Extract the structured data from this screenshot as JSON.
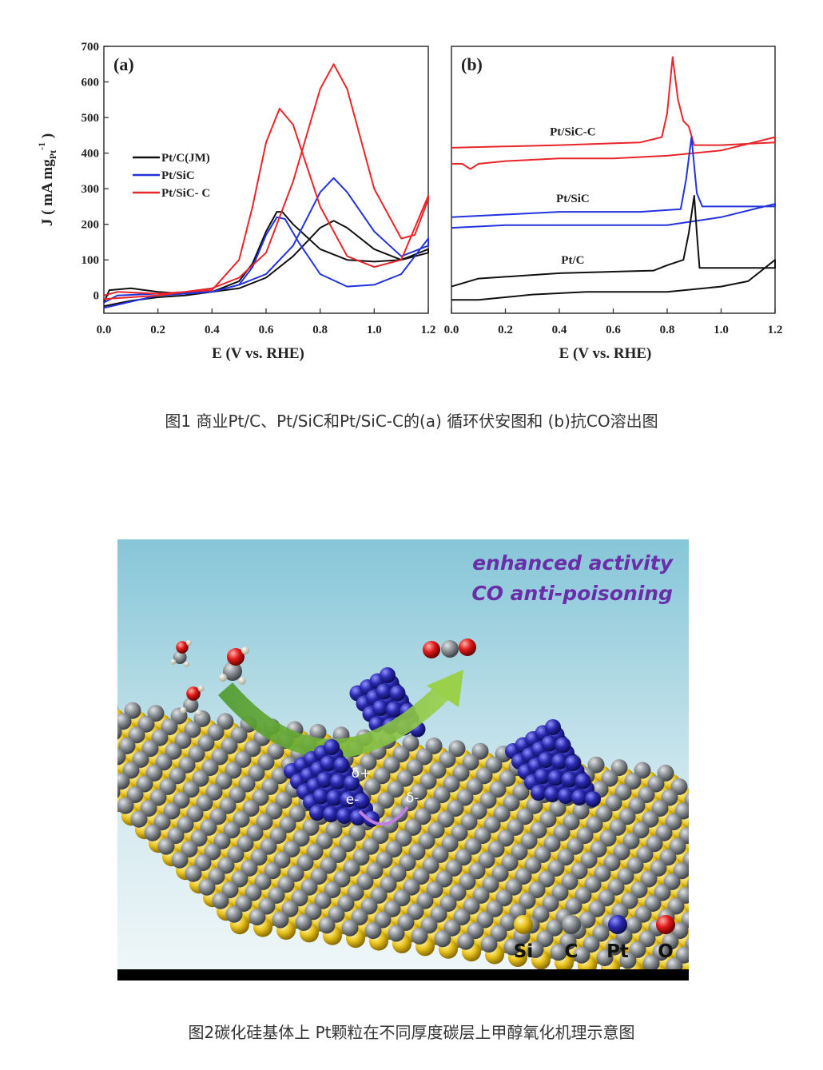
{
  "chart_data": [
    {
      "type": "line",
      "panel_label": "(a)",
      "xlabel": "E (V vs. RHE)",
      "ylabel": {
        "main": "J ( mA mg",
        "sub": "Pt",
        "sup": "-1",
        "end": " )"
      },
      "xlim": [
        0,
        1.2
      ],
      "ylim": [
        -50,
        700
      ],
      "xticks": [
        {
          "value": 0,
          "label": "0.0"
        },
        0.2,
        0.4,
        0.6,
        0.8,
        {
          "value": 1,
          "label": "1.0"
        },
        1.2
      ],
      "yticks": [
        0,
        100,
        200,
        300,
        400,
        500,
        600,
        700
      ],
      "legend": "left",
      "series": [
        {
          "name": "Pt/C(JM)",
          "color": "#111111",
          "x": [
            0,
            0.02,
            0.1,
            0.2,
            0.3,
            0.4,
            0.5,
            0.55,
            0.6,
            0.64,
            0.66,
            0.7,
            0.8,
            0.9,
            1.0,
            1.1,
            1.2,
            1.2,
            1.1,
            1.0,
            0.9,
            0.85,
            0.8,
            0.7,
            0.6,
            0.5,
            0.4,
            0.3,
            0.2,
            0.1,
            0
          ],
          "values": [
            -20,
            15,
            20,
            10,
            5,
            10,
            40,
            90,
            180,
            235,
            235,
            200,
            130,
            100,
            95,
            100,
            130,
            120,
            100,
            130,
            190,
            210,
            190,
            110,
            50,
            20,
            10,
            0,
            -5,
            -15,
            -30
          ]
        },
        {
          "name": "Pt/SiC",
          "color": "#2233dd",
          "x": [
            0,
            0.05,
            0.2,
            0.4,
            0.5,
            0.55,
            0.6,
            0.64,
            0.67,
            0.72,
            0.8,
            0.9,
            1.0,
            1.1,
            1.2,
            1.2,
            1.1,
            1.0,
            0.9,
            0.85,
            0.8,
            0.7,
            0.6,
            0.5,
            0.4,
            0.2,
            0
          ],
          "values": [
            -20,
            0,
            5,
            10,
            30,
            80,
            170,
            220,
            215,
            150,
            60,
            25,
            30,
            60,
            160,
            140,
            110,
            180,
            290,
            330,
            290,
            140,
            60,
            30,
            10,
            0,
            -35
          ]
        },
        {
          "name": "Pt/SiC- C",
          "color": "#e8262a",
          "x": [
            0,
            0.05,
            0.2,
            0.4,
            0.5,
            0.55,
            0.6,
            0.65,
            0.7,
            0.8,
            0.9,
            1.0,
            1.1,
            1.2,
            1.2,
            1.15,
            1.1,
            1.0,
            0.9,
            0.85,
            0.8,
            0.7,
            0.6,
            0.5,
            0.4,
            0.2,
            0
          ],
          "values": [
            0,
            10,
            5,
            15,
            100,
            250,
            430,
            525,
            480,
            250,
            110,
            80,
            100,
            280,
            270,
            170,
            160,
            300,
            580,
            650,
            580,
            320,
            120,
            50,
            20,
            0,
            -10
          ]
        }
      ]
    },
    {
      "type": "line",
      "panel_label": "(b)",
      "xlabel": "E (V vs. RHE)",
      "xlim": [
        0,
        1.2
      ],
      "ylim": [
        0,
        100
      ],
      "xticks": [
        {
          "value": 0,
          "label": "0.0"
        },
        0.2,
        0.4,
        0.6,
        0.8,
        {
          "value": 1,
          "label": "1.0"
        },
        1.2
      ],
      "legend": "inline",
      "series": [
        {
          "name": "Pt/SiC-C",
          "color": "#e8262a",
          "x": [
            0,
            0.4,
            0.7,
            0.78,
            0.8,
            0.82,
            0.84,
            0.86,
            0.88,
            0.9,
            1.0,
            1.2,
            1.2,
            1.0,
            0.8,
            0.6,
            0.4,
            0.2,
            0.1,
            0.07,
            0.04,
            0
          ],
          "values": [
            62,
            63,
            64,
            66,
            75,
            96,
            80,
            72,
            70,
            63,
            63,
            64,
            66,
            61,
            59,
            58,
            58,
            57,
            56,
            54,
            56,
            56
          ]
        },
        {
          "name": "Pt/SiC",
          "color": "#2233dd",
          "x": [
            0,
            0.4,
            0.7,
            0.85,
            0.87,
            0.89,
            0.91,
            0.93,
            1.2,
            1.2,
            1.0,
            0.8,
            0.7,
            0.5,
            0.2,
            0
          ],
          "values": [
            36,
            38,
            38,
            39,
            50,
            66,
            45,
            40,
            40,
            41,
            36,
            33,
            33,
            33,
            33,
            32
          ]
        },
        {
          "name": "Pt/C",
          "color": "#111111",
          "x": [
            0,
            0.1,
            0.4,
            0.75,
            0.8,
            0.86,
            0.88,
            0.9,
            0.91,
            0.92,
            1.0,
            1.2,
            1.2,
            1.1,
            1.0,
            0.8,
            0.5,
            0.3,
            0.1,
            0
          ],
          "values": [
            10,
            13,
            15,
            16,
            18,
            20,
            30,
            44,
            30,
            17,
            17,
            17,
            20,
            12,
            10,
            8,
            8,
            7,
            5,
            5
          ]
        }
      ]
    }
  ],
  "captions": [
    "图1 商业Pt/C、Pt/SiC和Pt/SiC-C的(a) 循环伏安图和 (b)抗CO溶出图",
    "图2碳化硅基体上 Pt颗粒在不同厚度碳层上甲醇氧化机理示意图"
  ],
  "figure2": {
    "headline": [
      "enhanced activity",
      "CO anti-poisoning"
    ],
    "charges": [
      "δ+",
      "e-",
      "δ-"
    ],
    "legend": [
      "Si",
      "C",
      "Pt",
      "O"
    ]
  }
}
